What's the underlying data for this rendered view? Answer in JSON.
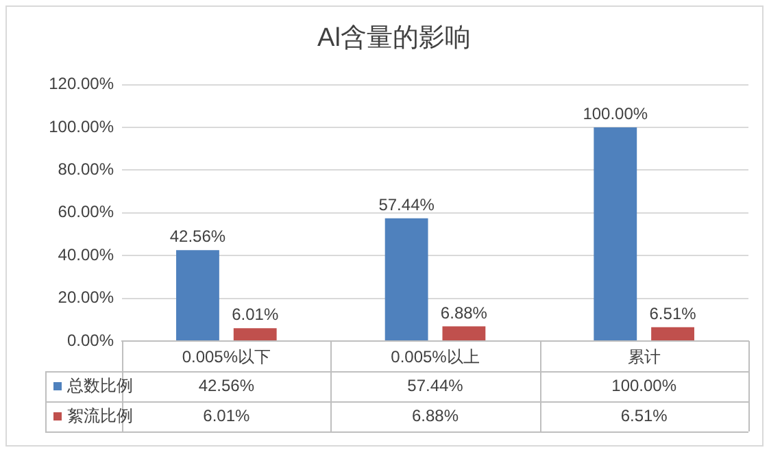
{
  "chart_data": {
    "type": "bar",
    "title": "Al含量的影响",
    "categories": [
      "0.005%以下",
      "0.005%以上",
      "累计"
    ],
    "series": [
      {
        "name": "总数比例",
        "color": "#4f81bd",
        "values": [
          42.56,
          57.44,
          100
        ],
        "value_labels": [
          "42.56%",
          "57.44%",
          "100.00%"
        ]
      },
      {
        "name": "絮流比例",
        "color": "#c0504d",
        "values": [
          6.01,
          6.88,
          6.51
        ],
        "value_labels": [
          "6.01%",
          "6.88%",
          "6.51%"
        ]
      }
    ],
    "ylim": [
      0,
      120
    ],
    "yticks": [
      {
        "value": 0,
        "label": "0.00%"
      },
      {
        "value": 20,
        "label": "20.00%"
      },
      {
        "value": 40,
        "label": "40.00%"
      },
      {
        "value": 60,
        "label": "60.00%"
      },
      {
        "value": 80,
        "label": "80.00%"
      },
      {
        "value": 100,
        "label": "100.00%"
      },
      {
        "value": 120,
        "label": "120.00%"
      }
    ],
    "grid": "y",
    "legend": "bottom"
  }
}
